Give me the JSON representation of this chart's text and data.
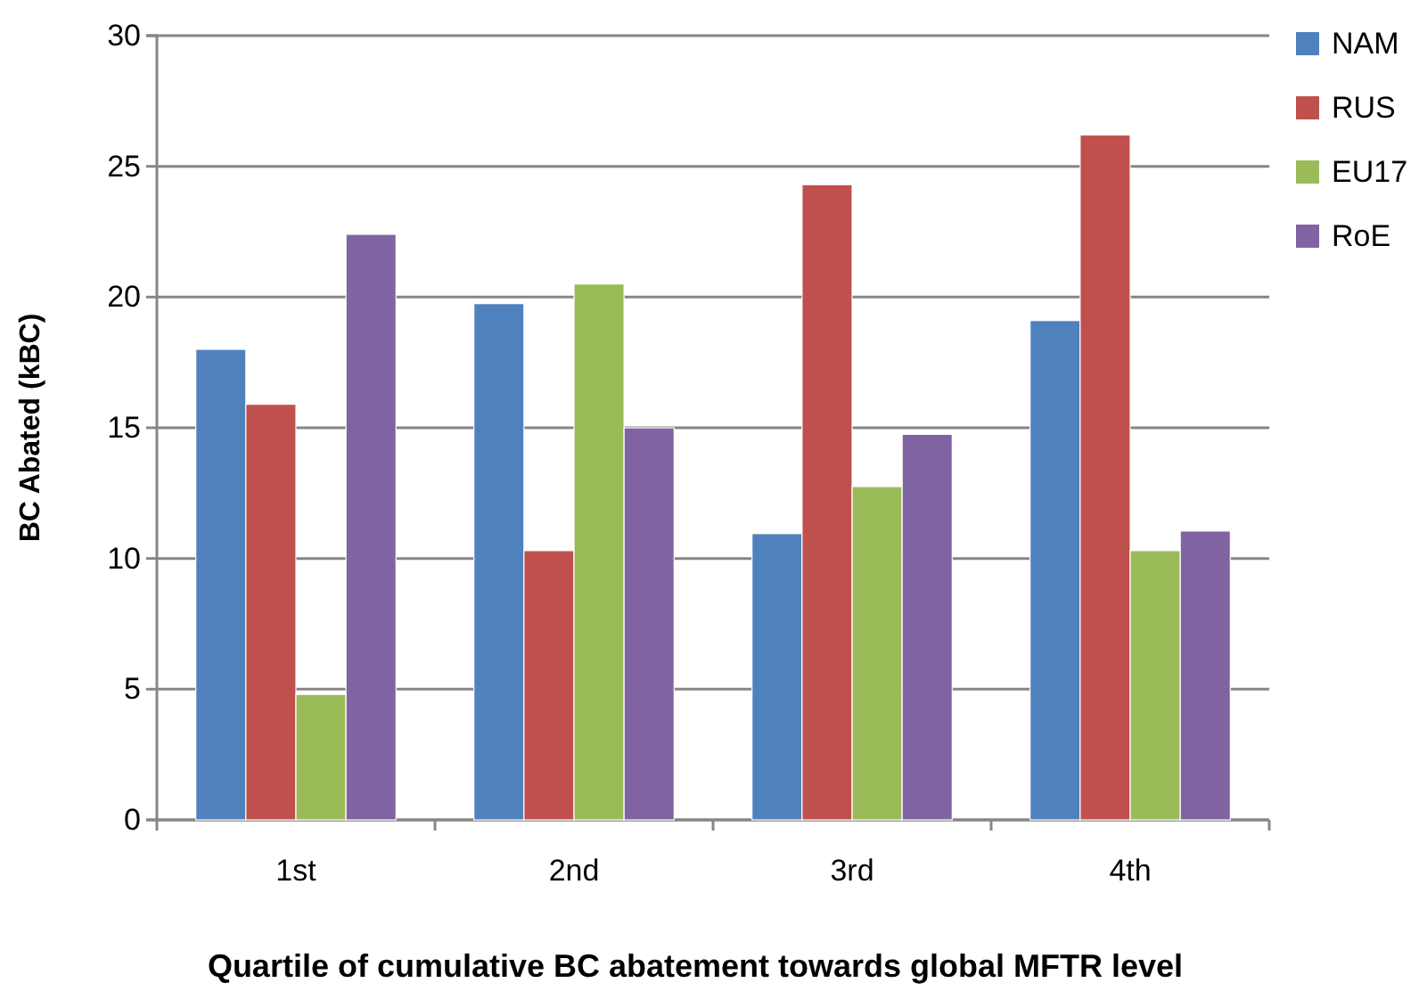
{
  "chart_data": {
    "type": "bar",
    "xlabel": "Quartile of cumulative BC abatement towards global MFTR level",
    "ylabel": "BC Abated (kBC)",
    "categories": [
      "1st",
      "2nd",
      "3rd",
      "4th"
    ],
    "series": [
      {
        "name": "NAM",
        "color": "#4f81bd",
        "values": [
          18,
          19.75,
          10.95,
          19.1
        ]
      },
      {
        "name": "RUS",
        "color": "#c0504d",
        "values": [
          15.9,
          10.3,
          24.3,
          26.2
        ]
      },
      {
        "name": "EU17",
        "color": "#9bbb59",
        "values": [
          4.8,
          20.5,
          12.75,
          10.3
        ]
      },
      {
        "name": "RoE",
        "color": "#8064a2",
        "values": [
          22.4,
          15,
          14.75,
          11.05
        ]
      }
    ],
    "ylim": [
      0,
      30
    ],
    "yticks": [
      0,
      5,
      10,
      15,
      20,
      25,
      30
    ],
    "grid": "y",
    "legend": "right"
  }
}
